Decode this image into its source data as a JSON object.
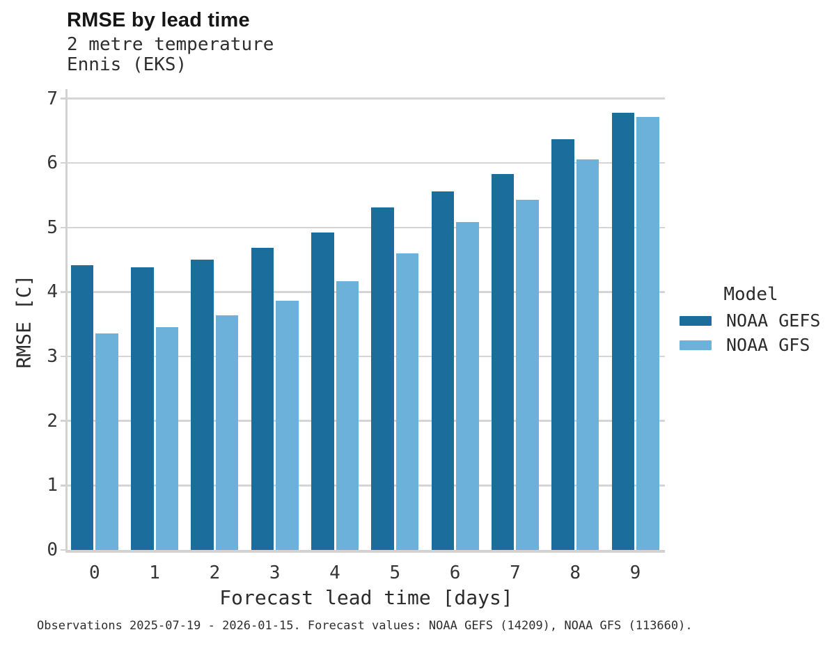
{
  "chart_data": {
    "type": "bar",
    "title": "RMSE by lead time",
    "subtitle": [
      "2 metre temperature",
      "Ennis (EKS)"
    ],
    "categories": [
      "0",
      "1",
      "2",
      "3",
      "4",
      "5",
      "6",
      "7",
      "8",
      "9"
    ],
    "series": [
      {
        "name": "NOAA GEFS",
        "color": "#1b6d9b",
        "values": [
          4.41,
          4.38,
          4.5,
          4.69,
          4.92,
          5.31,
          5.56,
          5.83,
          6.37,
          6.78
        ]
      },
      {
        "name": "NOAA GFS",
        "color": "#6cb1d9",
        "values": [
          3.36,
          3.45,
          3.64,
          3.86,
          4.17,
          4.6,
          5.08,
          5.43,
          6.06,
          6.71
        ]
      }
    ],
    "xlabel": "Forecast lead time [days]",
    "ylabel": "RMSE [C]",
    "ylim": [
      0,
      7
    ],
    "yticks": [
      0,
      1,
      2,
      3,
      4,
      5,
      6,
      7
    ],
    "grid": true,
    "legend_position": "right",
    "colors": {
      "grid": "#d5d5d5",
      "axis": "#d2d2d2"
    }
  },
  "legend": {
    "title": "Model",
    "items": [
      {
        "label": "NOAA GEFS",
        "color": "#1b6d9b"
      },
      {
        "label": "NOAA GFS",
        "color": "#6cb1d9"
      }
    ]
  },
  "footer": {
    "caption": "Observations 2025-07-19 - 2026-01-15. Forecast values: NOAA GEFS (14209), NOAA GFS (113660)."
  }
}
